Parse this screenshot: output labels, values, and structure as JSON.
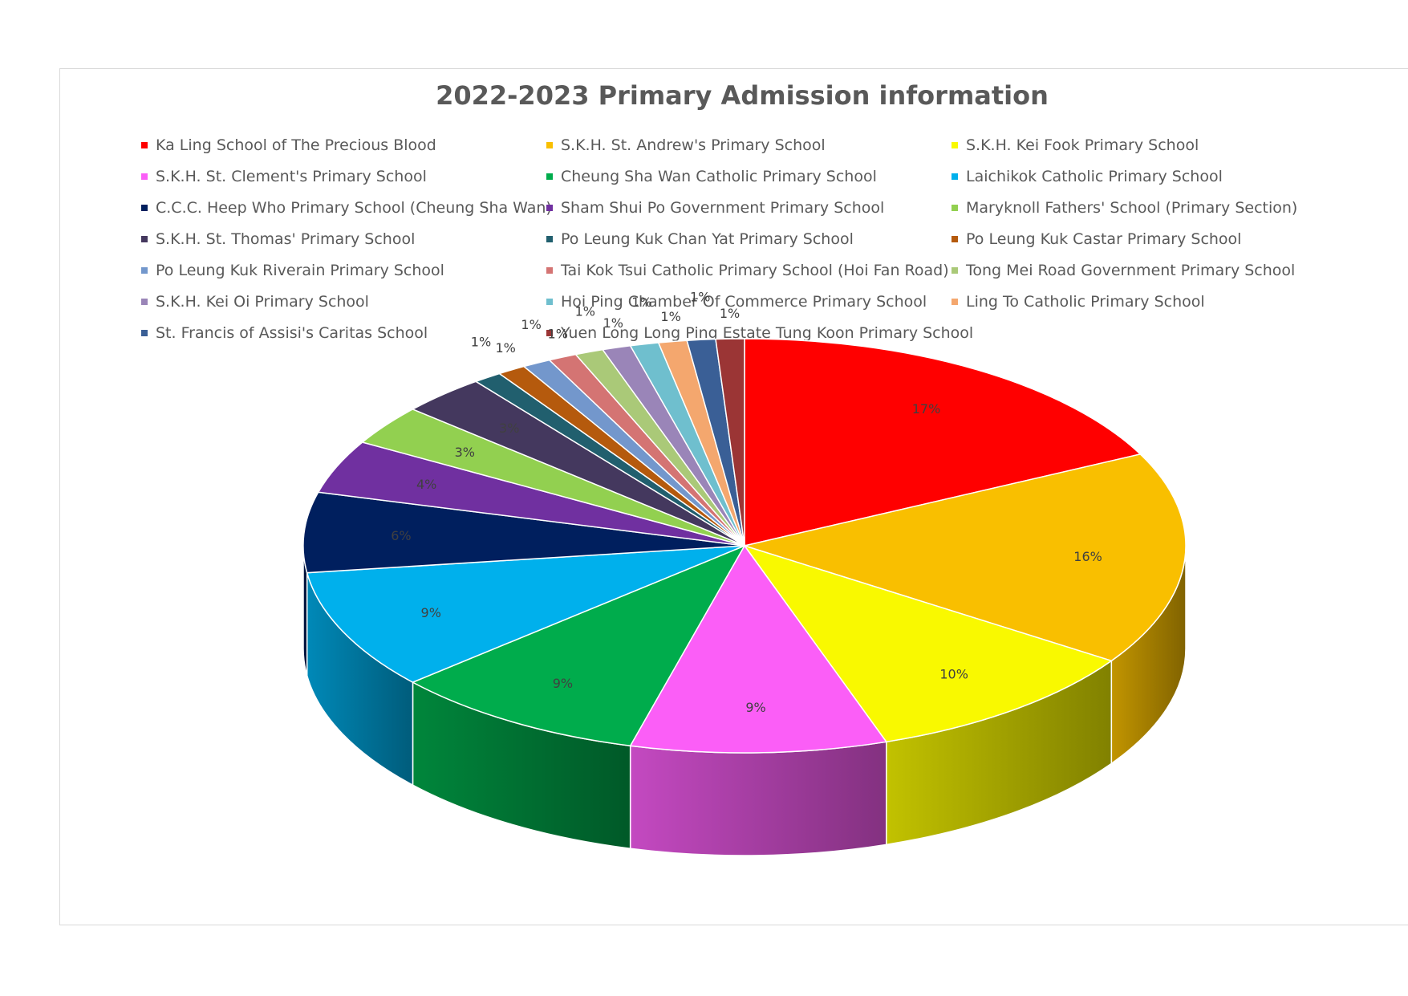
{
  "chart_data": {
    "type": "pie",
    "title": "2022-2023 Primary Admission information",
    "legend_position": "top",
    "three_d": true,
    "slices": [
      {
        "label": "Ka Ling School of The Precious Blood",
        "value": 17,
        "display": "17%",
        "color": "#ff0000"
      },
      {
        "label": "S.K.H. St. Andrew's Primary School",
        "value": 16,
        "display": "16%",
        "color": "#f9bf00"
      },
      {
        "label": "S.K.H. Kei Fook Primary School",
        "value": 10,
        "display": "10%",
        "color": "#f9f900"
      },
      {
        "label": "S.K.H. St. Clement's Primary School",
        "value": 9,
        "display": "9%",
        "color": "#fb5ef7"
      },
      {
        "label": "Cheung Sha Wan Catholic Primary School",
        "value": 9,
        "display": "9%",
        "color": "#00ac4c"
      },
      {
        "label": "Laichikok Catholic Primary School",
        "value": 9,
        "display": "9%",
        "color": "#00b0ec"
      },
      {
        "label": "C.C.C. Heep Who Primary School (Cheung Sha Wan)",
        "value": 6,
        "display": "6%",
        "color": "#001f5e"
      },
      {
        "label": "Sham Shui Po Government Primary School",
        "value": 4,
        "display": "4%",
        "color": "#7030a0"
      },
      {
        "label": "Maryknoll Fathers' School (Primary Section)",
        "value": 3,
        "display": "3%",
        "color": "#92d050"
      },
      {
        "label": "S.K.H. St. Thomas' Primary School",
        "value": 3,
        "display": "3%",
        "color": "#44385e"
      },
      {
        "label": "Po Leung Kuk Chan Yat Primary School",
        "value": 1,
        "display": "1%",
        "color": "#215f6e"
      },
      {
        "label": "Po Leung Kuk Castar Primary School",
        "value": 1,
        "display": "1%",
        "color": "#b55a0d"
      },
      {
        "label": "Po Leung Kuk Riverain Primary School",
        "value": 1,
        "display": "1%",
        "color": "#7397cc"
      },
      {
        "label": "Tai Kok Tsui Catholic Primary School (Hoi Fan Road)",
        "value": 1,
        "display": "1%",
        "color": "#d47473"
      },
      {
        "label": "Tong Mei Road Government Primary School",
        "value": 1,
        "display": "1%",
        "color": "#aac978"
      },
      {
        "label": "S.K.H. Kei Oi Primary School",
        "value": 1,
        "display": "1%",
        "color": "#9a85b8"
      },
      {
        "label": "Hoi Ping Chamber Of Commerce Primary School",
        "value": 1,
        "display": "1%",
        "color": "#6fbfce"
      },
      {
        "label": "Ling To Catholic Primary School",
        "value": 1,
        "display": "1%",
        "color": "#f4a76e"
      },
      {
        "label": "St. Francis of Assisi's Caritas School",
        "value": 1,
        "display": "1%",
        "color": "#3a5f96"
      },
      {
        "label": "Yuen Long Long Ping Estate Tung Koon Primary School",
        "value": 1,
        "display": "1%",
        "color": "#9b3535"
      }
    ]
  }
}
